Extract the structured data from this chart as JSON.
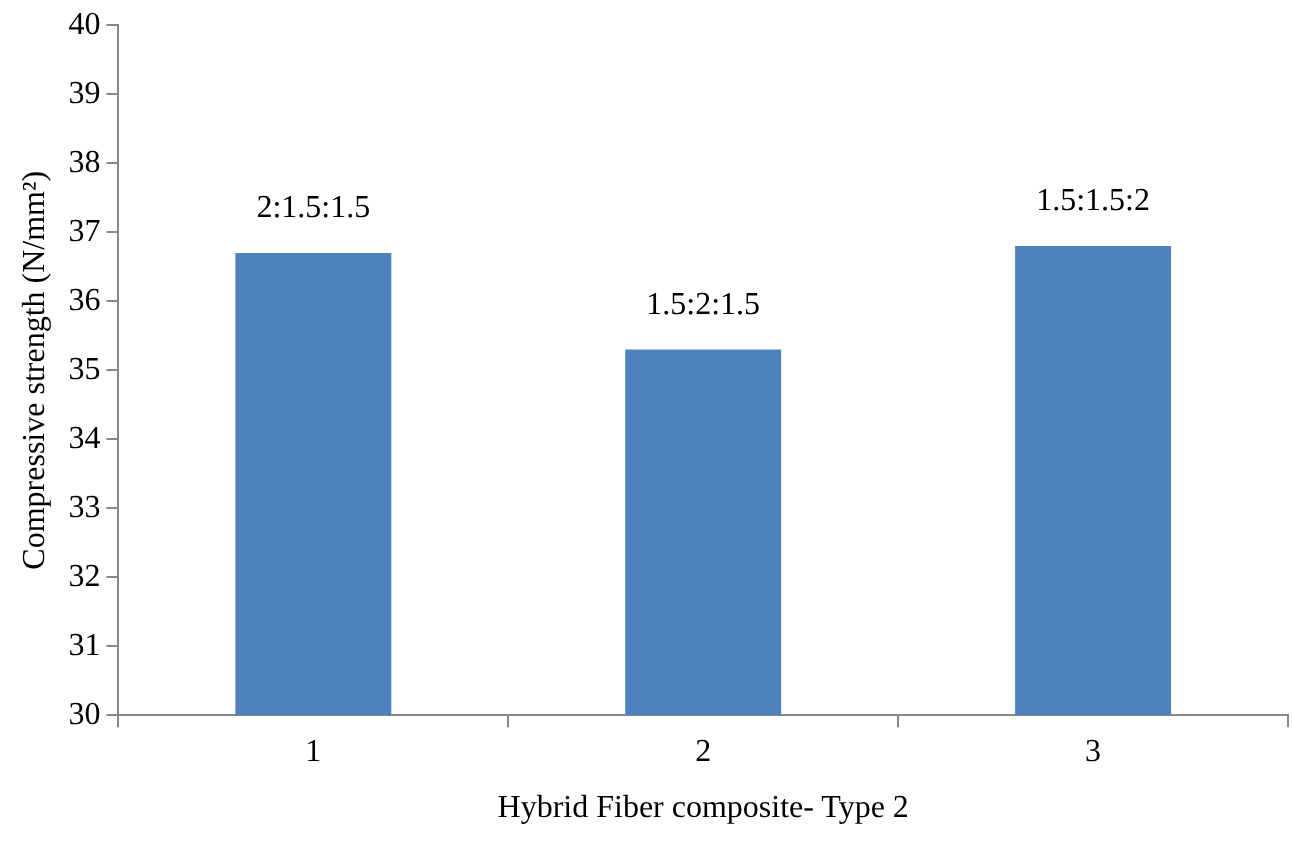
{
  "chart_data": {
    "type": "bar",
    "xlabel": "Hybrid Fiber composite- Type 2",
    "ylabel": "Compressive strength (N/mm²)",
    "categories": [
      "1",
      "2",
      "3"
    ],
    "values": [
      36.7,
      35.3,
      36.8
    ],
    "value_labels": [
      "2:1.5:1.5",
      "1.5:2:1.5",
      "1.5:1.5:2"
    ],
    "color": "#4f81bd",
    "ylim": [
      30,
      40
    ],
    "yticks": [
      30,
      31,
      32,
      33,
      34,
      35,
      36,
      37,
      38,
      39,
      40
    ],
    "grid": false,
    "legend": false
  }
}
